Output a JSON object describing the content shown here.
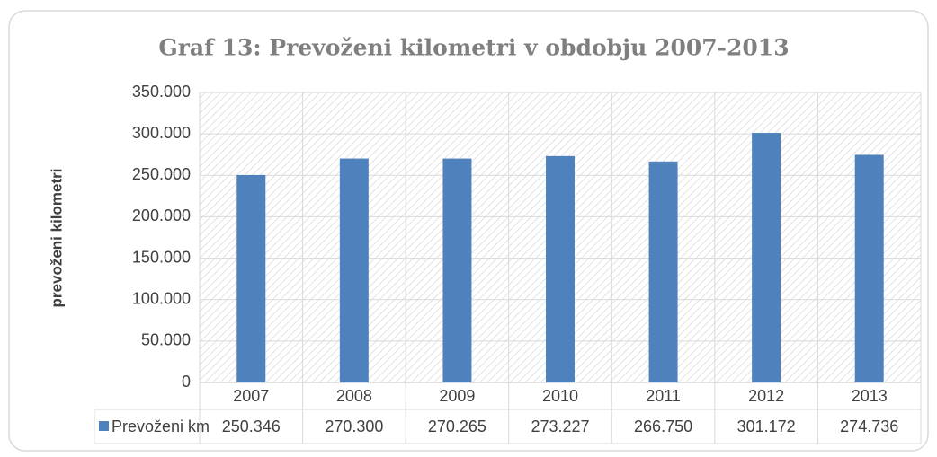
{
  "chart_data": {
    "type": "bar",
    "title": "Graf 13: Prevoženi kilometri v obdobju 2007-2013",
    "y_label": "prevoženi kilometri",
    "categories": [
      "2007",
      "2008",
      "2009",
      "2010",
      "2011",
      "2012",
      "2013"
    ],
    "series": [
      {
        "name": "Prevoženi km",
        "color": "#4f81bd",
        "values": [
          250346,
          270300,
          270265,
          273227,
          266750,
          301172,
          274736
        ],
        "value_labels": [
          "250.346",
          "270.300",
          "270.265",
          "273.227",
          "266.750",
          "301.172",
          "274.736"
        ]
      }
    ],
    "ylim": [
      0,
      350000
    ],
    "yticks": [
      0,
      {
        "value": 50000,
        "label": "50.000"
      },
      {
        "value": 100000,
        "label": "100.000"
      },
      {
        "value": 150000,
        "label": "150.000"
      },
      {
        "value": 200000,
        "label": "200.000"
      },
      {
        "value": 250000,
        "label": "250.000"
      },
      {
        "value": 300000,
        "label": "300.000"
      },
      {
        "value": 350000,
        "label": "350.000"
      }
    ],
    "grid": true
  }
}
